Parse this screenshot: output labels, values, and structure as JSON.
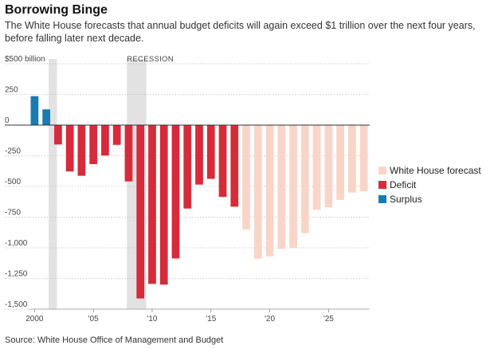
{
  "title": "Borrowing Binge",
  "subtitle": "The White House forecasts that annual budget deficits will again exceed $1 trillion over the next four years, before falling later next decade.",
  "source": "Source: White House Office of Management and Budget",
  "chart_data": {
    "type": "bar",
    "title": "Borrowing Binge",
    "ylabel": "",
    "xlabel": "",
    "ylim": [
      -1500,
      500
    ],
    "xlim": [
      1999.5,
      2028.5
    ],
    "grid": "horizontal dotted",
    "legend_position": "right",
    "y_ticks": [
      {
        "value": 500,
        "label": "$500 billion"
      },
      {
        "value": 250,
        "label": "250"
      },
      {
        "value": 0,
        "label": "0"
      },
      {
        "value": -250,
        "label": "-250"
      },
      {
        "value": -500,
        "label": "-500"
      },
      {
        "value": -750,
        "label": "-750"
      },
      {
        "value": -1000,
        "label": "-1,000"
      },
      {
        "value": -1250,
        "label": "-1,250"
      },
      {
        "value": -1500,
        "label": "-1,500"
      }
    ],
    "x_ticks": [
      {
        "value": 2000,
        "label": "2000"
      },
      {
        "value": 2005,
        "label": "'05"
      },
      {
        "value": 2010,
        "label": "'10"
      },
      {
        "value": 2015,
        "label": "'15"
      },
      {
        "value": 2020,
        "label": "'20"
      },
      {
        "value": 2025,
        "label": "'25"
      }
    ],
    "recessions": [
      {
        "start": 2001.2,
        "end": 2001.9,
        "label": ""
      },
      {
        "start": 2007.85,
        "end": 2009.5,
        "label": "RECESSION"
      }
    ],
    "series": [
      {
        "name": "Surplus",
        "color": "#1a7bb0",
        "points": [
          {
            "x": 2000,
            "y": 236
          },
          {
            "x": 2001,
            "y": 128
          }
        ]
      },
      {
        "name": "Deficit",
        "color": "#d62b3a",
        "points": [
          {
            "x": 2002,
            "y": -158
          },
          {
            "x": 2003,
            "y": -378
          },
          {
            "x": 2004,
            "y": -413
          },
          {
            "x": 2005,
            "y": -318
          },
          {
            "x": 2006,
            "y": -248
          },
          {
            "x": 2007,
            "y": -161
          },
          {
            "x": 2008,
            "y": -459
          },
          {
            "x": 2009,
            "y": -1413
          },
          {
            "x": 2010,
            "y": -1294
          },
          {
            "x": 2011,
            "y": -1300
          },
          {
            "x": 2012,
            "y": -1087
          },
          {
            "x": 2013,
            "y": -680
          },
          {
            "x": 2014,
            "y": -485
          },
          {
            "x": 2015,
            "y": -438
          },
          {
            "x": 2016,
            "y": -585
          },
          {
            "x": 2017,
            "y": -665
          }
        ]
      },
      {
        "name": "White House forecast",
        "color": "#f9d5c8",
        "points": [
          {
            "x": 2018,
            "y": -850
          },
          {
            "x": 2019,
            "y": -1090
          },
          {
            "x": 2020,
            "y": -1070
          },
          {
            "x": 2021,
            "y": -1010
          },
          {
            "x": 2022,
            "y": -1000
          },
          {
            "x": 2023,
            "y": -880
          },
          {
            "x": 2024,
            "y": -690
          },
          {
            "x": 2025,
            "y": -670
          },
          {
            "x": 2026,
            "y": -610
          },
          {
            "x": 2027,
            "y": -550
          },
          {
            "x": 2028,
            "y": -540
          }
        ]
      }
    ],
    "legend": [
      {
        "name": "White House forecast",
        "color": "#f9d5c8"
      },
      {
        "name": "Deficit",
        "color": "#d62b3a"
      },
      {
        "name": "Surplus",
        "color": "#1a7bb0"
      }
    ]
  }
}
